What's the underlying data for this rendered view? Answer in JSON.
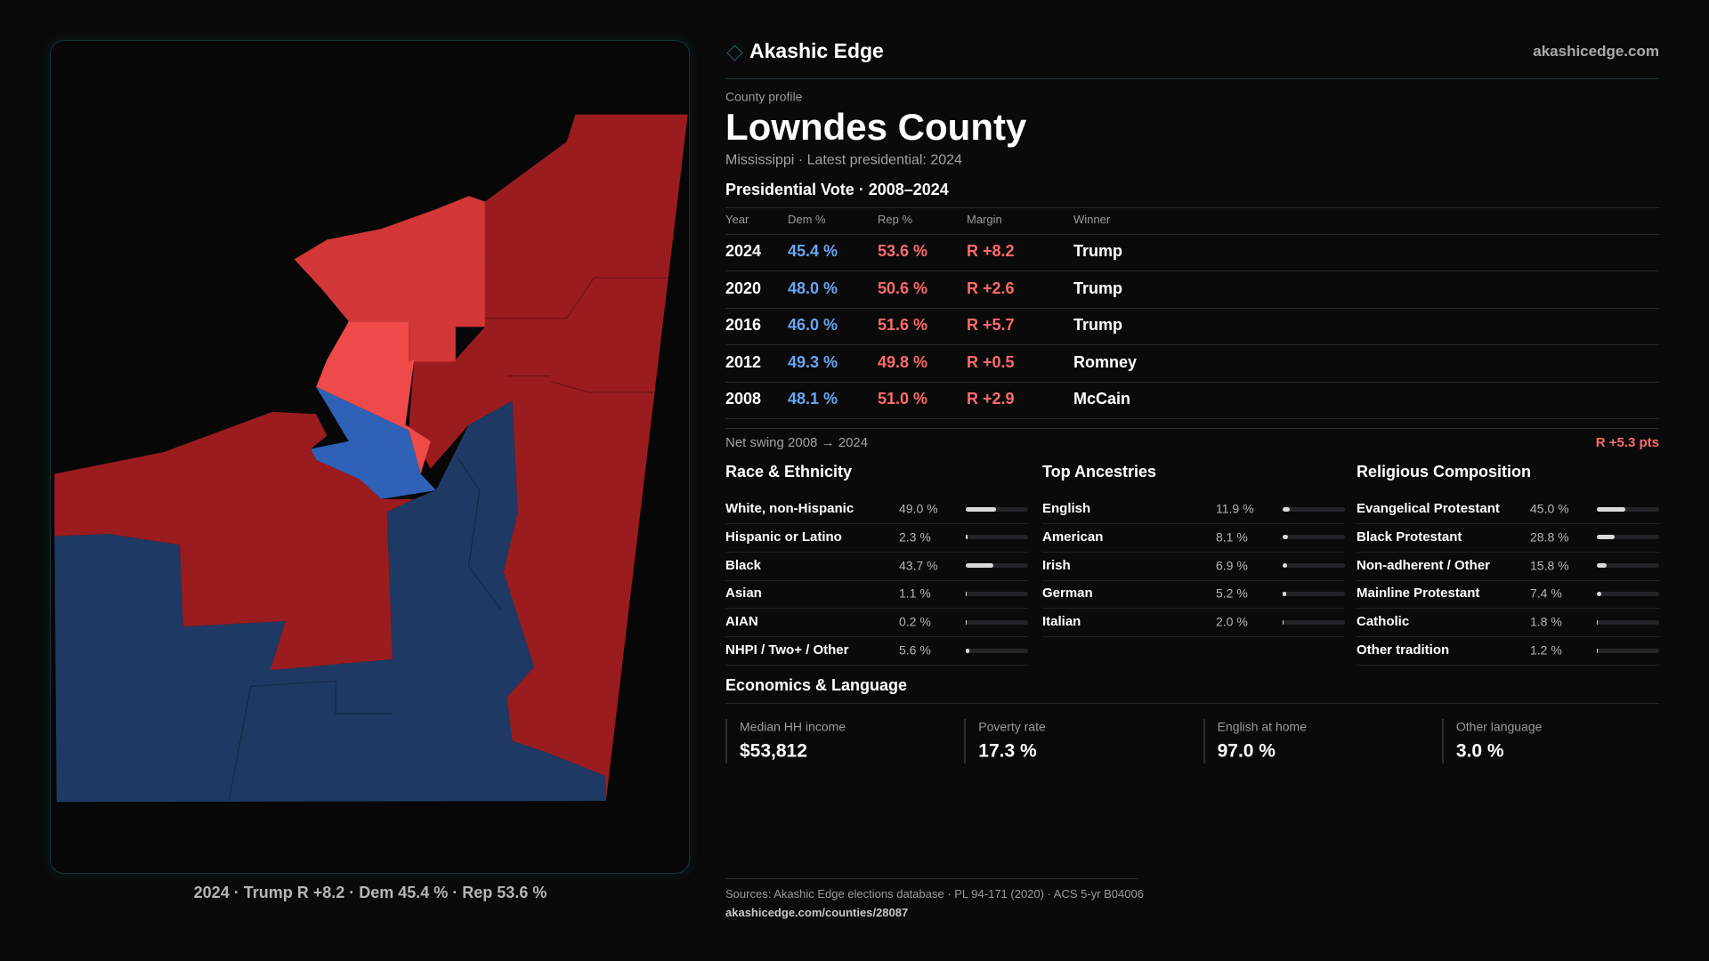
{
  "brand": {
    "name": "Akashic Edge",
    "url": "akashicedge.com"
  },
  "map_caption": "2024 · Trump R +8.2 · Dem 45.4 % · Rep 53.6 %",
  "header": {
    "eyebrow": "County profile",
    "title": "Lowndes County",
    "subtitle": "Mississippi · Latest presidential: 2024"
  },
  "vote_table": {
    "title": "Presidential Vote · 2008–2024",
    "columns": [
      "Year",
      "Dem %",
      "Rep %",
      "Margin",
      "Winner"
    ],
    "rows": [
      [
        "2024",
        "45.4 %",
        "53.6 %",
        "R +8.2",
        "Trump"
      ],
      [
        "2020",
        "48.0 %",
        "50.6 %",
        "R +2.6",
        "Trump"
      ],
      [
        "2016",
        "46.0 %",
        "51.6 %",
        "R +5.7",
        "Trump"
      ],
      [
        "2012",
        "49.3 %",
        "49.8 %",
        "R +0.5",
        "Romney"
      ],
      [
        "2008",
        "48.1 %",
        "51.0 %",
        "R +2.9",
        "McCain"
      ]
    ]
  },
  "net_swing": {
    "label": "Net swing 2008 → 2024",
    "value": "R +5.3 pts"
  },
  "race": {
    "title": "Race & Ethnicity",
    "rows": [
      {
        "name": "White, non-Hispanic",
        "share": "49.0 %"
      },
      {
        "name": "Hispanic or Latino",
        "share": "2.3 %"
      },
      {
        "name": "Black",
        "share": "43.7 %"
      },
      {
        "name": "Asian",
        "share": "1.1 %"
      },
      {
        "name": "AIAN",
        "share": "0.2 %"
      },
      {
        "name": "NHPI / Two+ / Other",
        "share": "5.6 %"
      }
    ]
  },
  "ancestries": {
    "title": "Top Ancestries",
    "rows": [
      {
        "name": "English",
        "share": "11.9 %"
      },
      {
        "name": "American",
        "share": "8.1 %"
      },
      {
        "name": "Irish",
        "share": "6.9 %"
      },
      {
        "name": "German",
        "share": "5.2 %"
      },
      {
        "name": "Italian",
        "share": "2.0 %"
      }
    ]
  },
  "religion": {
    "title": "Religious Composition",
    "rows": [
      {
        "name": "Evangelical Protestant",
        "share": "45.0 %"
      },
      {
        "name": "Black Protestant",
        "share": "28.8 %"
      },
      {
        "name": "Non-adherent / Other",
        "share": "15.8 %"
      },
      {
        "name": "Mainline Protestant",
        "share": "7.4 %"
      },
      {
        "name": "Catholic",
        "share": "1.8 %"
      },
      {
        "name": "Other tradition",
        "share": "1.2 %"
      }
    ]
  },
  "economics": {
    "title": "Economics & Language",
    "cards": [
      {
        "label": "Median HH income",
        "value": "$53,812"
      },
      {
        "label": "Poverty rate",
        "value": "17.3 %"
      },
      {
        "label": "English at home",
        "value": "97.0 %"
      },
      {
        "label": "Other language",
        "value": "3.0 %"
      }
    ]
  },
  "footer": {
    "sources": "Sources: Akashic Edge elections database · PL 94-171 (2020) · ACS 5-yr B04006",
    "url": "akashicedge.com/counties/28087"
  }
}
